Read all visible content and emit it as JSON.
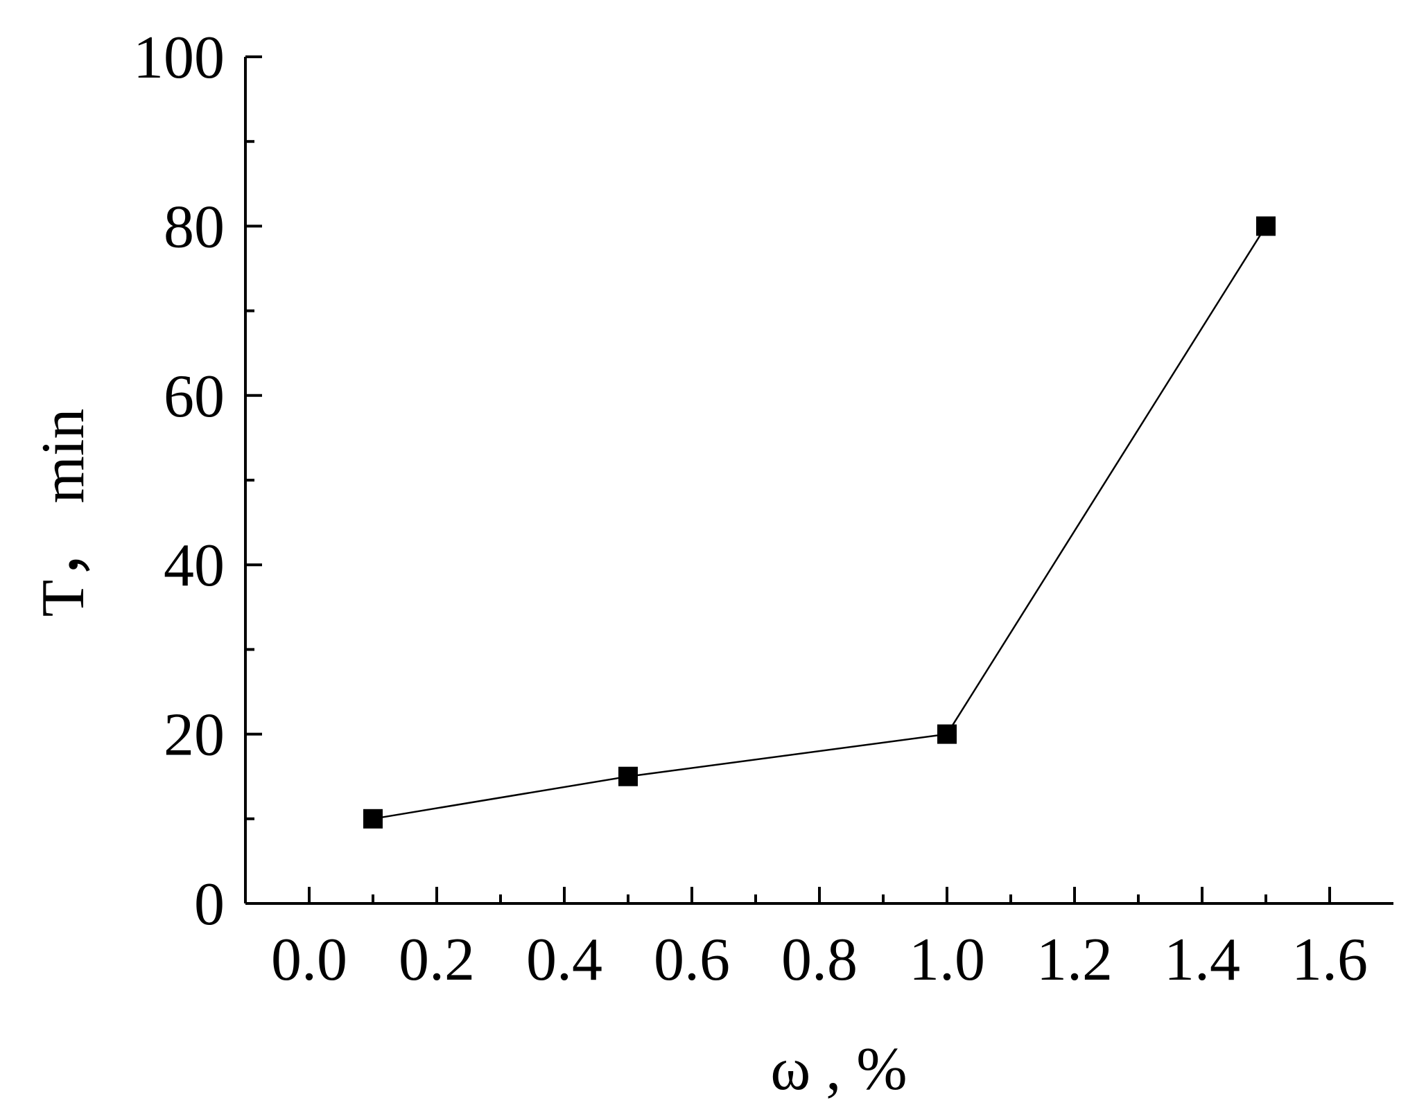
{
  "chart_data": {
    "type": "line",
    "title": "",
    "xlabel": "ω , %",
    "ylabel": "T， min",
    "xlim": [
      -0.1,
      1.7
    ],
    "ylim": [
      0,
      100
    ],
    "x_ticks": [
      0.0,
      0.2,
      0.4,
      0.6,
      0.8,
      1.0,
      1.2,
      1.4,
      1.6
    ],
    "x_tick_labels": [
      "0.0",
      "0.2",
      "0.4",
      "0.6",
      "0.8",
      "1.0",
      "1.2",
      "1.4",
      "1.6"
    ],
    "y_ticks": [
      0,
      20,
      40,
      60,
      80,
      100
    ],
    "y_tick_labels": [
      "0",
      "20",
      "40",
      "60",
      "80",
      "100"
    ],
    "grid": false,
    "series": [
      {
        "x": [
          0.1,
          0.5,
          1.0,
          1.5
        ],
        "y": [
          10,
          15,
          20,
          80
        ],
        "marker": "square",
        "color": "#000000"
      }
    ]
  }
}
